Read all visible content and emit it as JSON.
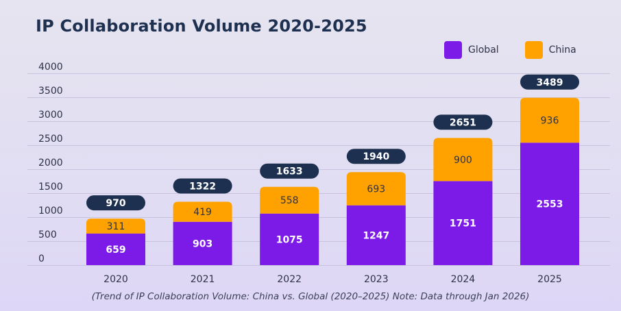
{
  "chart_data": {
    "type": "bar",
    "stacked": true,
    "title": "IP Collaboration Volume 2020-2025",
    "subtitle": "",
    "caption": "(Trend of IP Collaboration Volume: China vs. Global (2020–2025) Note: Data through Jan 2026)",
    "categories": [
      "2020",
      "2021",
      "2022",
      "2023",
      "2024",
      "2025"
    ],
    "series": [
      {
        "name": "Global",
        "color": "#7c1ae8",
        "values": [
          659,
          903,
          1075,
          1247,
          1751,
          2553
        ]
      },
      {
        "name": "China",
        "color": "#ffa200",
        "values": [
          311,
          419,
          558,
          693,
          900,
          936
        ]
      }
    ],
    "totals": [
      970,
      1322,
      1633,
      1940,
      2651,
      3489
    ],
    "xlabel": "",
    "ylabel": "",
    "ylim": [
      0,
      4000
    ],
    "yticks": [
      0,
      500,
      1000,
      1500,
      2000,
      2500,
      3000,
      3500,
      4000
    ],
    "grid": true,
    "legend_position": "top-right",
    "total_label_color": "#1e3050"
  }
}
